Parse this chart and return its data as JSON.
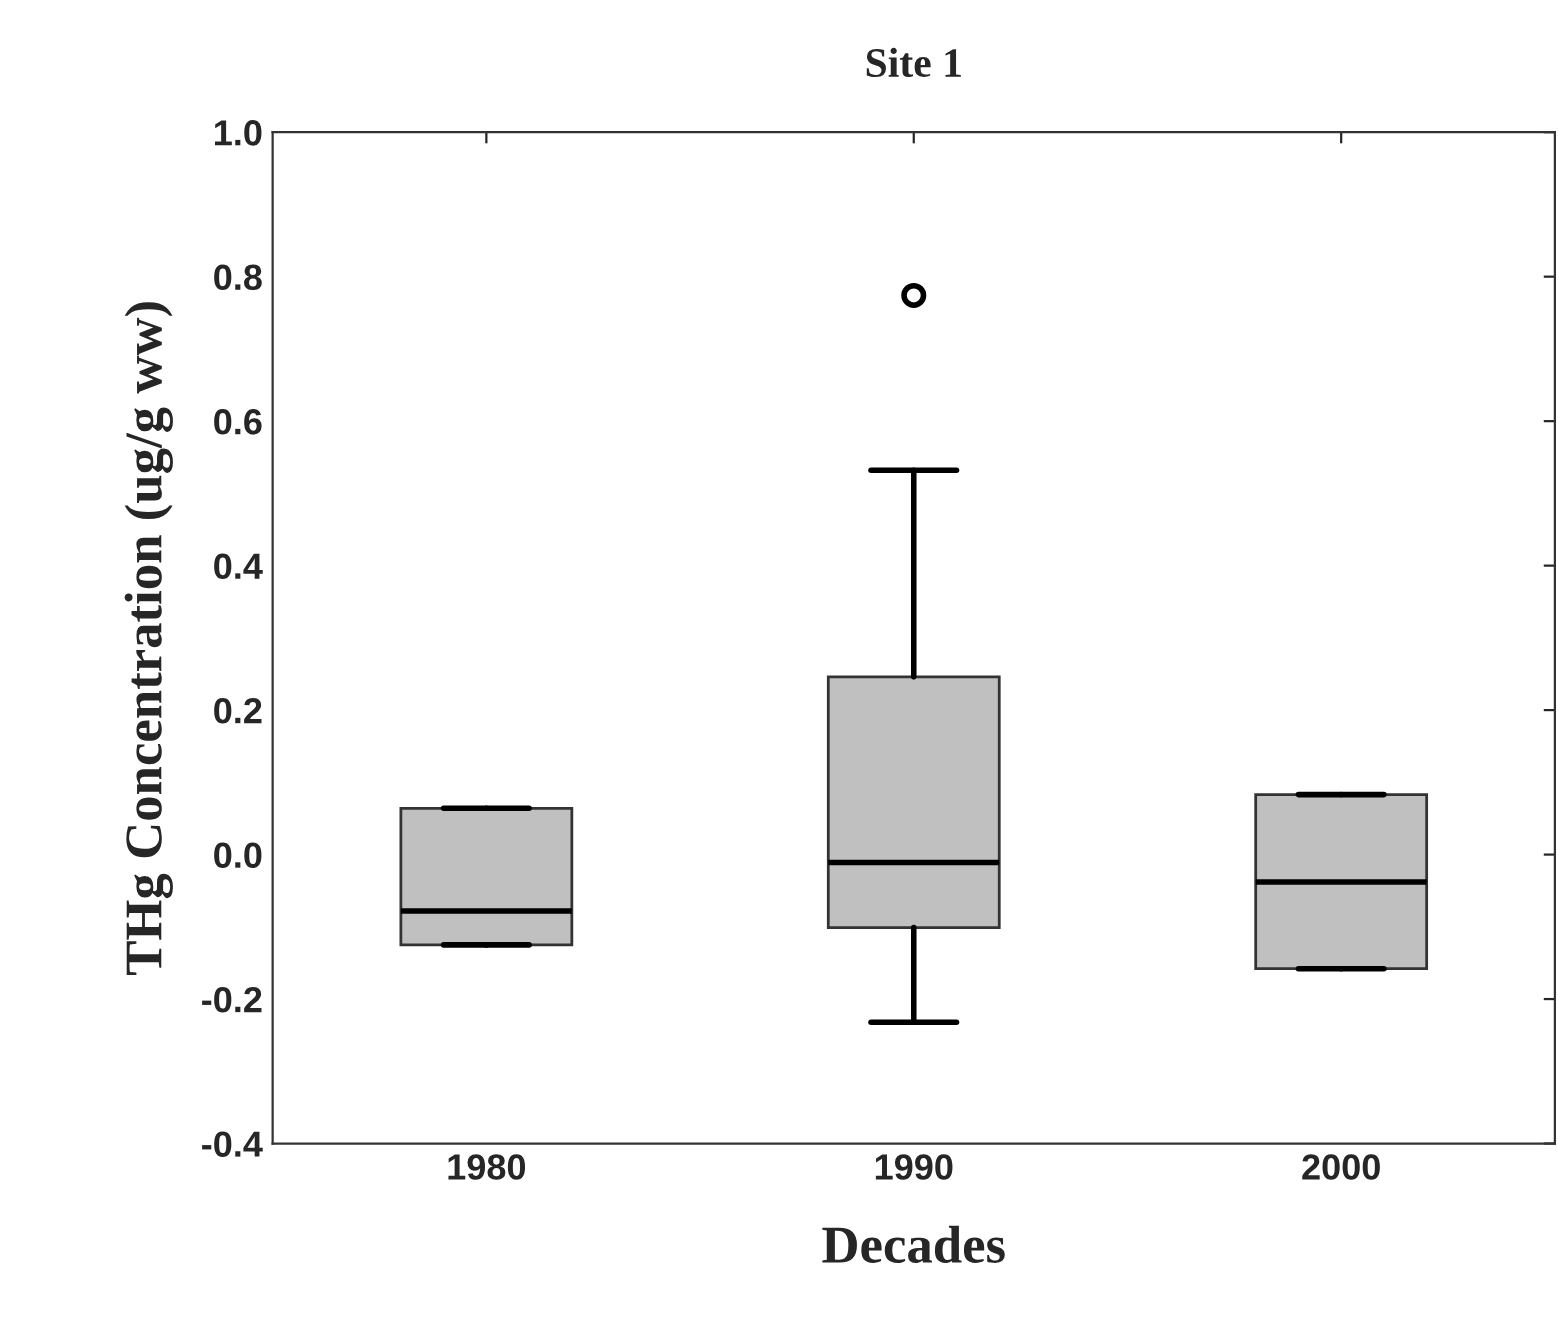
{
  "chart_data": {
    "type": "box",
    "title": "Site 1",
    "xlabel": "Decades",
    "ylabel": "THg Concentration (ug/g ww)",
    "categories": [
      "1980",
      "1990",
      "2000"
    ],
    "boxes": [
      {
        "low": -0.125,
        "q1": -0.125,
        "median": -0.078,
        "q3": 0.064,
        "high": 0.064
      },
      {
        "low": -0.232,
        "q1": -0.101,
        "median": -0.011,
        "q3": 0.246,
        "high": 0.532,
        "outliers": [
          0.774
        ]
      },
      {
        "low": -0.158,
        "q1": -0.158,
        "median": -0.038,
        "q3": 0.083,
        "high": 0.083
      }
    ],
    "color": "#c0c0c0",
    "ylim": [
      -0.4,
      1.0
    ],
    "yticks": [
      {
        "value": -0.4,
        "label": "-0.4"
      },
      {
        "value": -0.2,
        "label": "-0.2"
      },
      {
        "value": 0,
        "label": "0.0"
      },
      {
        "value": 0.2,
        "label": "0.2"
      },
      {
        "value": 0.4,
        "label": "0.4"
      },
      {
        "value": 0.6,
        "label": "0.6"
      },
      {
        "value": 0.8,
        "label": "0.8"
      },
      {
        "value": 1.0,
        "label": "1.0"
      }
    ],
    "grid": false
  }
}
